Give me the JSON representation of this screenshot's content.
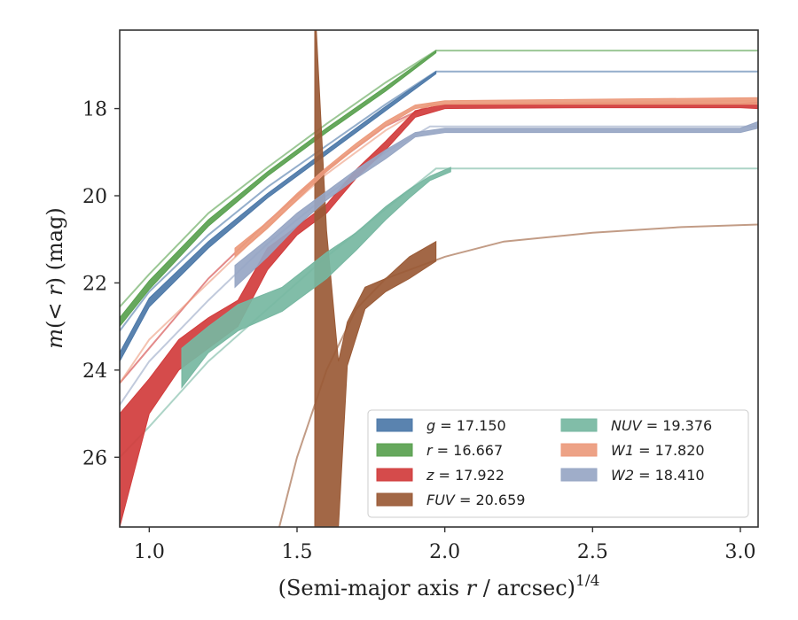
{
  "chart_data": {
    "type": "line",
    "title": "",
    "xlabel": "(Semi-major axis r / arcsec)^1/4",
    "xlabel_parts": {
      "pre": "(Semi-major axis ",
      "var": "r",
      "post": " / arcsec)",
      "sup": "1/4"
    },
    "ylabel": "m(< r) (mag)",
    "ylabel_parts": {
      "m": "m",
      "open": "(",
      "inner": "< r",
      "close": ")",
      "unit": " (mag)"
    },
    "xlim": [
      0.9,
      3.06
    ],
    "ylim": [
      27.6,
      16.2
    ],
    "xticks": [
      1.0,
      1.5,
      2.0,
      2.5,
      3.0
    ],
    "xtick_labels": [
      "1.0",
      "1.5",
      "2.0",
      "2.5",
      "3.0"
    ],
    "yticks": [
      18,
      20,
      22,
      24,
      26
    ],
    "ytick_labels": [
      "18",
      "20",
      "22",
      "24",
      "26"
    ],
    "legend_position": "lower-right",
    "series": [
      {
        "key": "g",
        "name": "g",
        "value": "17.150",
        "italic": true,
        "color": "#4c78a8",
        "band": [
          [
            0.9,
            23.6,
            23.8
          ],
          [
            1.0,
            22.35,
            22.55
          ],
          [
            1.2,
            21.05,
            21.2
          ],
          [
            1.4,
            19.95,
            20.05
          ],
          [
            1.6,
            18.95,
            19.05
          ],
          [
            1.8,
            17.95,
            18.05
          ],
          [
            1.97,
            17.15,
            17.2
          ]
        ],
        "model": [
          [
            0.9,
            23.1
          ],
          [
            1.0,
            22.2
          ],
          [
            1.2,
            20.9
          ],
          [
            1.4,
            19.8
          ],
          [
            1.6,
            18.85
          ],
          [
            1.8,
            17.9
          ],
          [
            1.97,
            17.15
          ],
          [
            3.06,
            17.15
          ]
        ]
      },
      {
        "key": "r",
        "name": "r",
        "value": "16.667",
        "italic": true,
        "color": "#59a14f",
        "band": [
          [
            0.9,
            22.8,
            23.0
          ],
          [
            1.0,
            21.95,
            22.15
          ],
          [
            1.2,
            20.55,
            20.7
          ],
          [
            1.4,
            19.45,
            19.55
          ],
          [
            1.6,
            18.45,
            18.55
          ],
          [
            1.8,
            17.5,
            17.6
          ],
          [
            1.97,
            16.67,
            16.72
          ]
        ],
        "model": [
          [
            0.9,
            22.55
          ],
          [
            1.0,
            21.8
          ],
          [
            1.2,
            20.4
          ],
          [
            1.4,
            19.35
          ],
          [
            1.6,
            18.35
          ],
          [
            1.8,
            17.4
          ],
          [
            1.97,
            16.67
          ],
          [
            3.06,
            16.67
          ]
        ]
      },
      {
        "key": "z",
        "name": "z",
        "value": "17.922",
        "italic": true,
        "color": "#d13c3c",
        "band": [
          [
            0.9,
            25.0,
            27.6
          ],
          [
            1.0,
            24.2,
            25.0
          ],
          [
            1.1,
            23.3,
            24.0
          ],
          [
            1.2,
            22.8,
            23.5
          ],
          [
            1.3,
            22.4,
            23.0
          ],
          [
            1.4,
            21.2,
            21.7
          ],
          [
            1.5,
            20.7,
            20.9
          ],
          [
            1.6,
            20.2,
            20.4
          ],
          [
            1.7,
            19.4,
            19.6
          ],
          [
            1.8,
            18.75,
            18.95
          ],
          [
            1.9,
            18.05,
            18.2
          ],
          [
            2.0,
            17.9,
            18.0
          ],
          [
            2.5,
            17.88,
            17.98
          ],
          [
            3.0,
            17.88,
            17.98
          ],
          [
            3.06,
            17.85,
            18.0
          ]
        ],
        "model": [
          [
            0.9,
            24.3
          ],
          [
            1.0,
            23.5
          ],
          [
            1.2,
            21.9
          ],
          [
            1.4,
            20.6
          ],
          [
            1.6,
            19.4
          ],
          [
            1.8,
            18.4
          ],
          [
            1.95,
            17.92
          ],
          [
            3.06,
            17.92
          ]
        ]
      },
      {
        "key": "FUV",
        "name": "FUV",
        "value": "20.659",
        "italic": true,
        "color": "#9a5a36",
        "band": [
          [
            1.56,
            15.5,
            27.6
          ],
          [
            1.6,
            20.8,
            27.6
          ],
          [
            1.64,
            23.8,
            27.6
          ],
          [
            1.67,
            22.9,
            23.9
          ],
          [
            1.73,
            22.1,
            22.6
          ],
          [
            1.8,
            21.9,
            22.2
          ],
          [
            1.88,
            21.4,
            21.9
          ],
          [
            1.97,
            21.05,
            21.5
          ]
        ],
        "model": [
          [
            1.44,
            27.6
          ],
          [
            1.5,
            26.0
          ],
          [
            1.6,
            24.0
          ],
          [
            1.7,
            22.6
          ],
          [
            1.8,
            21.9
          ],
          [
            2.0,
            21.4
          ],
          [
            2.2,
            21.05
          ],
          [
            2.5,
            20.85
          ],
          [
            2.8,
            20.72
          ],
          [
            3.06,
            20.66
          ]
        ]
      },
      {
        "key": "NUV",
        "name": "NUV",
        "value": "19.376",
        "italic": true,
        "color": "#76b7a1",
        "band": [
          [
            1.11,
            23.5,
            24.4
          ],
          [
            1.2,
            23.0,
            23.6
          ],
          [
            1.3,
            22.5,
            23.1
          ],
          [
            1.45,
            22.1,
            22.65
          ],
          [
            1.6,
            21.3,
            21.9
          ],
          [
            1.7,
            20.85,
            21.25
          ],
          [
            1.8,
            20.25,
            20.55
          ],
          [
            1.88,
            19.85,
            20.05
          ],
          [
            1.95,
            19.55,
            19.65
          ],
          [
            2.02,
            19.35,
            19.45
          ]
        ],
        "model": [
          [
            0.9,
            26.0
          ],
          [
            1.0,
            25.3
          ],
          [
            1.2,
            23.8
          ],
          [
            1.4,
            22.6
          ],
          [
            1.6,
            21.4
          ],
          [
            1.8,
            20.3
          ],
          [
            1.97,
            19.376
          ],
          [
            3.06,
            19.376
          ]
        ]
      },
      {
        "key": "W1",
        "name": "W1",
        "value": "17.820",
        "italic": true,
        "color": "#ec9a7c",
        "band": [
          [
            1.29,
            21.2,
            21.4
          ],
          [
            1.4,
            20.6,
            20.75
          ],
          [
            1.5,
            19.95,
            20.1
          ],
          [
            1.6,
            19.35,
            19.45
          ],
          [
            1.7,
            18.8,
            18.9
          ],
          [
            1.8,
            18.3,
            18.4
          ],
          [
            1.9,
            17.92,
            18.0
          ],
          [
            2.0,
            17.82,
            17.9
          ],
          [
            3.06,
            17.75,
            17.9
          ]
        ],
        "model": [
          [
            0.9,
            24.3
          ],
          [
            1.0,
            23.3
          ],
          [
            1.2,
            22.0
          ],
          [
            1.4,
            20.7
          ],
          [
            1.6,
            19.5
          ],
          [
            1.8,
            18.5
          ],
          [
            1.95,
            17.9
          ],
          [
            3.06,
            17.82
          ]
        ]
      },
      {
        "key": "W2",
        "name": "W2",
        "value": "18.410",
        "italic": true,
        "color": "#97a6c4",
        "band": [
          [
            1.29,
            21.6,
            22.1
          ],
          [
            1.4,
            21.0,
            21.4
          ],
          [
            1.5,
            20.4,
            20.7
          ],
          [
            1.6,
            19.9,
            20.1
          ],
          [
            1.7,
            19.4,
            19.6
          ],
          [
            1.8,
            18.95,
            19.15
          ],
          [
            1.9,
            18.55,
            18.65
          ],
          [
            2.0,
            18.45,
            18.55
          ],
          [
            3.0,
            18.45,
            18.55
          ],
          [
            3.06,
            18.3,
            18.45
          ]
        ],
        "model": [
          [
            0.9,
            24.8
          ],
          [
            1.0,
            23.8
          ],
          [
            1.2,
            22.4
          ],
          [
            1.4,
            21.1
          ],
          [
            1.6,
            20.0
          ],
          [
            1.8,
            19.0
          ],
          [
            1.95,
            18.41
          ],
          [
            3.06,
            18.41
          ]
        ]
      }
    ]
  }
}
